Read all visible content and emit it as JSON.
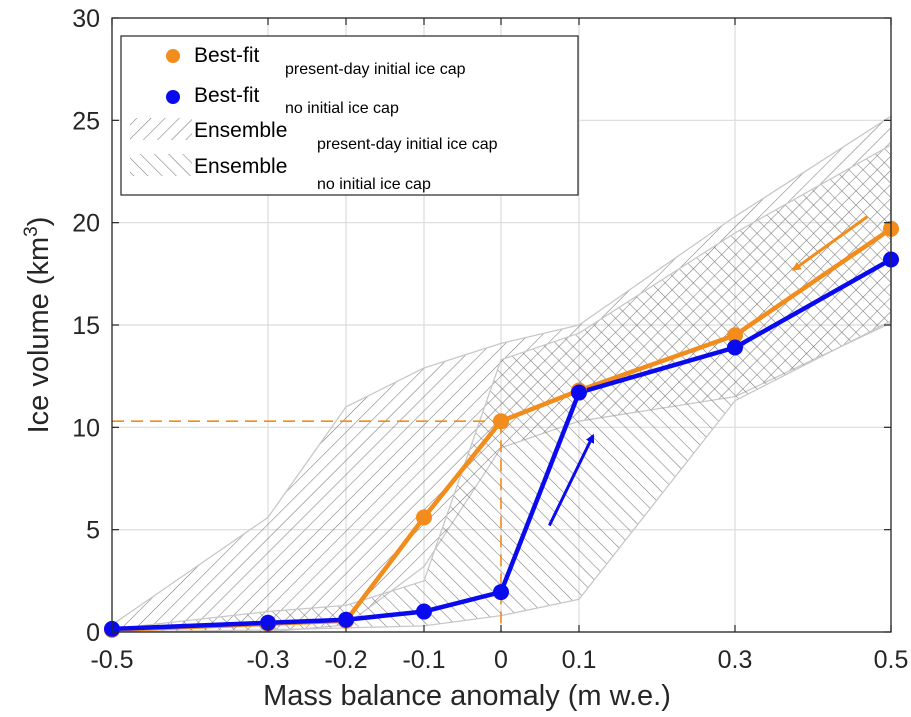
{
  "chart_data": {
    "type": "line",
    "xlabel": "Mass balance anomaly (m w.e.)",
    "ylabel_main": "Ice volume (km",
    "ylabel_sup": "3",
    "ylabel_close": ")",
    "x_ticks": [
      -0.5,
      -0.3,
      -0.2,
      -0.1,
      0,
      0.1,
      0.3,
      0.5
    ],
    "x_tick_labels": [
      "-0.5",
      "-0.3",
      "-0.2",
      "-0.1",
      "0",
      "0.1",
      "0.3",
      "0.5"
    ],
    "y_ticks": [
      0,
      5,
      10,
      15,
      20,
      25,
      30
    ],
    "y_tick_labels": [
      "0",
      "5",
      "10",
      "15",
      "20",
      "25",
      "30"
    ],
    "ylim": [
      0,
      30
    ],
    "x_axis_scale": "categorical (uneven spacing)",
    "grid": true,
    "legend_position": "top-left",
    "series": [
      {
        "name": "Best-fit",
        "subscript": "present-day initial ice cap",
        "color": "#f28c1c",
        "x": [
          -0.5,
          -0.3,
          -0.2,
          -0.1,
          0,
          0.1,
          0.3,
          0.5
        ],
        "values": [
          0.1,
          0.4,
          0.55,
          5.6,
          10.3,
          11.8,
          14.5,
          19.7
        ]
      },
      {
        "name": "Best-fit",
        "subscript": "no initial ice cap",
        "color": "#0a0aee",
        "x": [
          -0.5,
          -0.3,
          -0.2,
          -0.1,
          0,
          0.1,
          0.3,
          0.5
        ],
        "values": [
          0.15,
          0.45,
          0.6,
          1.0,
          1.95,
          11.7,
          13.9,
          18.2
        ]
      }
    ],
    "ensembles": [
      {
        "name": "Ensemble",
        "subscript": "present-day initial ice cap",
        "hatch": "forward-diagonal",
        "upper": [
          0.35,
          5.6,
          11.0,
          12.9,
          14.1,
          15.0,
          20.3,
          25.2
        ],
        "lower": [
          0.0,
          0.0,
          0.35,
          3.2,
          9.0,
          10.3,
          11.5,
          15.1
        ]
      },
      {
        "name": "Ensemble",
        "subscript": "no initial ice cap",
        "hatch": "backward-diagonal",
        "upper": [
          0.15,
          1.0,
          1.3,
          2.5,
          13.3,
          14.6,
          19.5,
          23.8
        ],
        "lower": [
          0.0,
          0.1,
          0.2,
          0.3,
          0.8,
          1.6,
          11.3,
          15.2
        ]
      }
    ],
    "annotations": {
      "reference_point": {
        "x": 0,
        "y": 10.3,
        "color": "#f28c1c",
        "style": "dashed"
      },
      "arrows": [
        {
          "color": "#f28c1c",
          "from": [
            0.47,
            20.3
          ],
          "to": [
            0.375,
            17.7
          ]
        },
        {
          "color": "#0a0aee",
          "from": [
            0.062,
            5.2
          ],
          "to": [
            0.118,
            9.6
          ]
        }
      ]
    }
  }
}
